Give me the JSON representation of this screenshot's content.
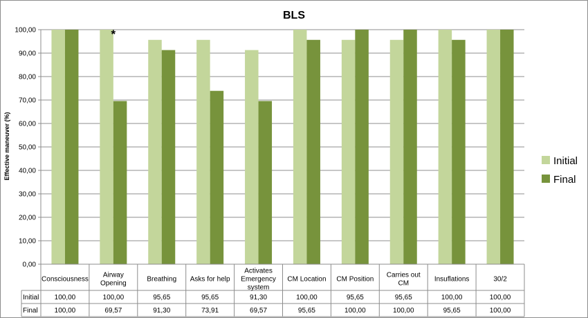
{
  "chart_data": {
    "type": "bar",
    "title": "BLS",
    "ylabel": "Effective maneuver  (%)",
    "xlabel": "",
    "ylim": [
      0,
      100
    ],
    "y_ticks": [
      "0,00",
      "10,00",
      "20,00",
      "30,00",
      "40,00",
      "50,00",
      "60,00",
      "70,00",
      "80,00",
      "90,00",
      "100,00"
    ],
    "grid": true,
    "legend_position": "right",
    "categories": [
      [
        "Consciousness"
      ],
      [
        "Airway",
        "Opening"
      ],
      [
        "Breathing"
      ],
      [
        "Asks for help"
      ],
      [
        "Activates",
        "Emergency",
        "system"
      ],
      [
        "CM Location"
      ],
      [
        "CM Position"
      ],
      [
        "Carries out",
        "CM"
      ],
      [
        "Insuflations"
      ],
      [
        "30/2"
      ]
    ],
    "series": [
      {
        "name": "Initial",
        "color": "#c3d69b",
        "values": [
          100.0,
          100.0,
          95.65,
          95.65,
          91.3,
          100.0,
          95.65,
          95.65,
          100.0,
          100.0
        ],
        "value_labels": [
          "100,00",
          "100,00",
          "95,65",
          "95,65",
          "91,30",
          "100,00",
          "95,65",
          "95,65",
          "100,00",
          "100,00"
        ]
      },
      {
        "name": "Final",
        "color": "#77933c",
        "values": [
          100.0,
          69.57,
          91.3,
          73.91,
          69.57,
          95.65,
          100.0,
          100.0,
          95.65,
          100.0
        ],
        "value_labels": [
          "100,00",
          "69,57",
          "91,30",
          "73,91",
          "69,57",
          "95,65",
          "100,00",
          "100,00",
          "95,65",
          "100,00"
        ]
      }
    ],
    "annotations": [
      {
        "text": "*",
        "category_index": 1
      }
    ],
    "data_table": true
  }
}
